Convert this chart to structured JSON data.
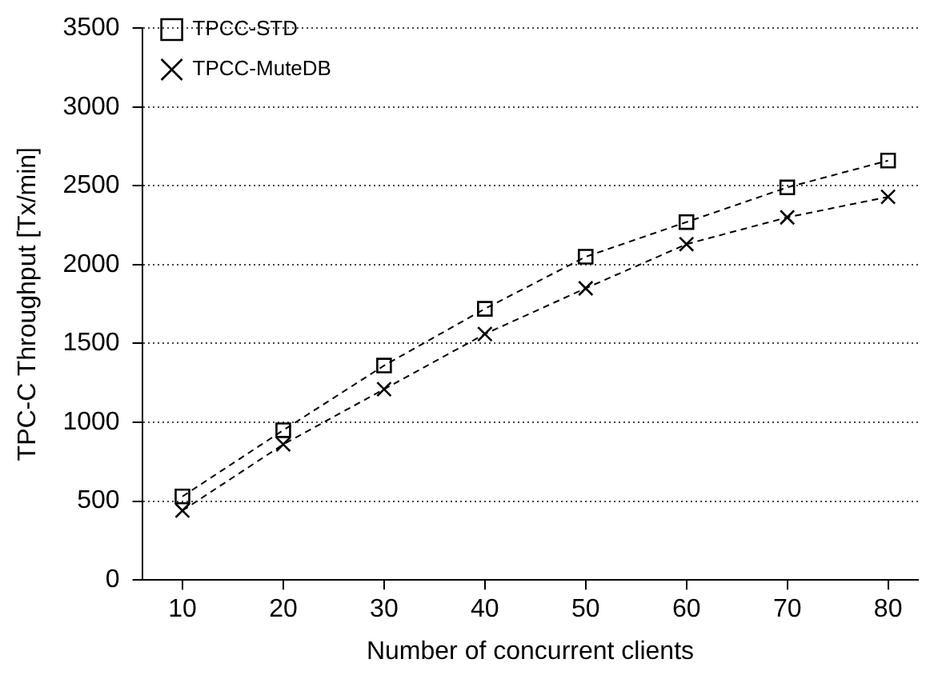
{
  "chart_data": {
    "type": "line",
    "xlabel": "Number of concurrent clients",
    "ylabel": "TPC-C Throughput [Tx/min]",
    "x": [
      10,
      20,
      30,
      40,
      50,
      60,
      70,
      80
    ],
    "series": [
      {
        "name": "TPCC-STD",
        "color": "#000000",
        "marker": "square",
        "line_style": "dashed",
        "values": [
          530,
          950,
          1360,
          1720,
          2050,
          2270,
          2490,
          2660
        ]
      },
      {
        "name": "TPCC-MuteDB",
        "color": "#000000",
        "marker": "cross",
        "line_style": "dashed",
        "values": [
          440,
          860,
          1210,
          1560,
          1850,
          2130,
          2300,
          2430
        ]
      }
    ],
    "xlim": [
      6,
      83
    ],
    "xticks": [
      10,
      20,
      30,
      40,
      50,
      60,
      70,
      80
    ],
    "ylim": [
      0,
      3500
    ],
    "yticks": [
      0,
      500,
      1000,
      1500,
      2000,
      2500,
      3000,
      3500
    ],
    "grid": "y",
    "legend": "top left"
  }
}
